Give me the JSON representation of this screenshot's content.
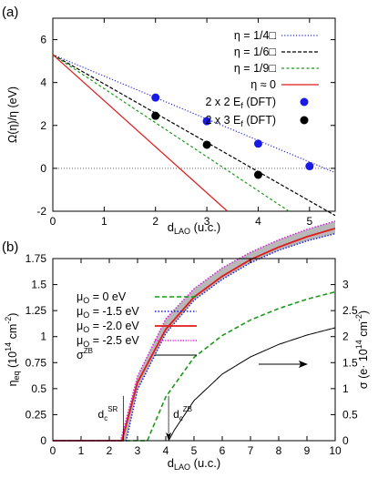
{
  "chart_data": [
    {
      "type": "line",
      "panel_label": "(a)",
      "xlabel_main": "d",
      "xlabel_sub": "LAO",
      "xlabel_unit": " (u.c.)",
      "ylabel": "Ω(η)/η (eV)",
      "xlim": [
        0,
        5.5
      ],
      "ylim": [
        -2,
        7
      ],
      "xticks": [
        "0",
        "1",
        "2",
        "3",
        "4",
        "5"
      ],
      "yticks": [
        "-2",
        "0",
        "2",
        "4",
        "6"
      ],
      "legend_position": "top-right",
      "series": [
        {
          "name": "η = 1/4□",
          "style": "dotted",
          "color": "#2a2ad8",
          "x": [
            0,
            5.5
          ],
          "y": [
            5.3,
            -0.2
          ]
        },
        {
          "name": "η = 1/6□",
          "style": "dashed",
          "color": "#000000",
          "x": [
            0,
            5.5
          ],
          "y": [
            5.3,
            -2.2
          ]
        },
        {
          "name": "η = 1/9□",
          "style": "dashed-fine",
          "color": "#1a9a1a",
          "x": [
            0,
            4.6
          ],
          "y": [
            5.3,
            -2.0
          ]
        },
        {
          "name": "η ≈ 0",
          "style": "solid",
          "color": "#e01a1a",
          "x": [
            0,
            3.4
          ],
          "y": [
            5.3,
            -2.0
          ]
        }
      ],
      "points": [
        {
          "name": "2 x 2 E",
          "sub": "f",
          "suffix": "  (DFT)",
          "color": "#1a1ae6",
          "x": [
            2,
            3,
            4,
            5
          ],
          "y": [
            3.3,
            2.2,
            1.15,
            0.1
          ]
        },
        {
          "name": "2 x 3 E",
          "sub": "f",
          "suffix": "  (DFT)",
          "color": "#000000",
          "x": [
            2,
            3,
            4
          ],
          "y": [
            2.45,
            1.1,
            -0.3
          ]
        }
      ]
    },
    {
      "type": "line",
      "panel_label": "(b)",
      "xlabel_main": "d",
      "xlabel_sub": "LAO",
      "xlabel_unit": " (u.c.)",
      "ylabel_left": "η_eq (10^14 cm^-2)",
      "ylabel_right": "σ (e·10^14 cm^-2)",
      "xlim": [
        0,
        10
      ],
      "ylim_left": [
        0,
        1.75
      ],
      "ylim_right": [
        0,
        3.5
      ],
      "xticks": [
        "0",
        "1",
        "2",
        "3",
        "4",
        "5",
        "6",
        "7",
        "8",
        "9",
        "10"
      ],
      "yticks_left": [
        "0",
        "0.25",
        "0.5",
        "0.75",
        "1",
        "1.25",
        "1.5",
        "1.75"
      ],
      "yticks_right": [
        "0",
        "0.5",
        "1",
        "1.5",
        "2",
        "2.5",
        "3"
      ],
      "legend_position": "upper-left",
      "series": [
        {
          "name": "μ_O = 0 eV",
          "style": "dashed",
          "color": "#1a9a1a",
          "dc": 3.35,
          "x": [
            0,
            3.35,
            3.5,
            4,
            5,
            6,
            7,
            8,
            9,
            10
          ],
          "y": [
            0,
            0,
            0.1,
            0.42,
            0.8,
            1.01,
            1.16,
            1.27,
            1.36,
            1.43
          ]
        },
        {
          "name": "μ_O = -1.5 eV",
          "style": "dotted",
          "color": "#1a1ae6",
          "dc": 2.6,
          "x": [
            0,
            2.6,
            3,
            4,
            5,
            6,
            7,
            8,
            9,
            10
          ],
          "y": [
            0,
            0,
            0.49,
            1.03,
            1.35,
            1.55,
            1.71,
            1.83,
            1.92,
            1.99
          ]
        },
        {
          "name": "μ_O = -2.0 eV",
          "style": "solid",
          "color": "#e01a1a",
          "dc": 2.45,
          "x": [
            0,
            2.45,
            3,
            4,
            5,
            6,
            7,
            8,
            9,
            10
          ],
          "y": [
            0,
            0,
            0.56,
            1.07,
            1.38,
            1.58,
            1.74,
            1.86,
            1.96,
            2.04
          ]
        },
        {
          "name": "μ_O = -2.5 eV",
          "style": "dotted",
          "color": "#d81ad8",
          "dc": 2.4,
          "x": [
            0,
            2.4,
            3,
            4,
            5,
            6,
            7,
            8,
            9,
            10
          ],
          "y": [
            0,
            0,
            0.62,
            1.17,
            1.46,
            1.66,
            1.81,
            1.93,
            2.03,
            2.11
          ]
        },
        {
          "name": "σ^ZB",
          "style": "solid",
          "color": "#000000",
          "axis": "right",
          "x": [
            0,
            4.1,
            4.3,
            5,
            6,
            7,
            8,
            9,
            10
          ],
          "y": [
            0,
            0,
            0.2,
            0.77,
            1.28,
            1.61,
            1.85,
            2.03,
            2.17
          ]
        }
      ],
      "band": {
        "color": "#b8b8b8",
        "lower": "μ_O = -1.5 eV",
        "upper": "μ_O = -2.5 eV"
      },
      "annotations": [
        {
          "label": "d",
          "sub": "c",
          "sup": "SR",
          "x": 2.5
        },
        {
          "label": "d",
          "sub": "c",
          "sup": "ZB",
          "x": 4.1
        }
      ]
    }
  ]
}
